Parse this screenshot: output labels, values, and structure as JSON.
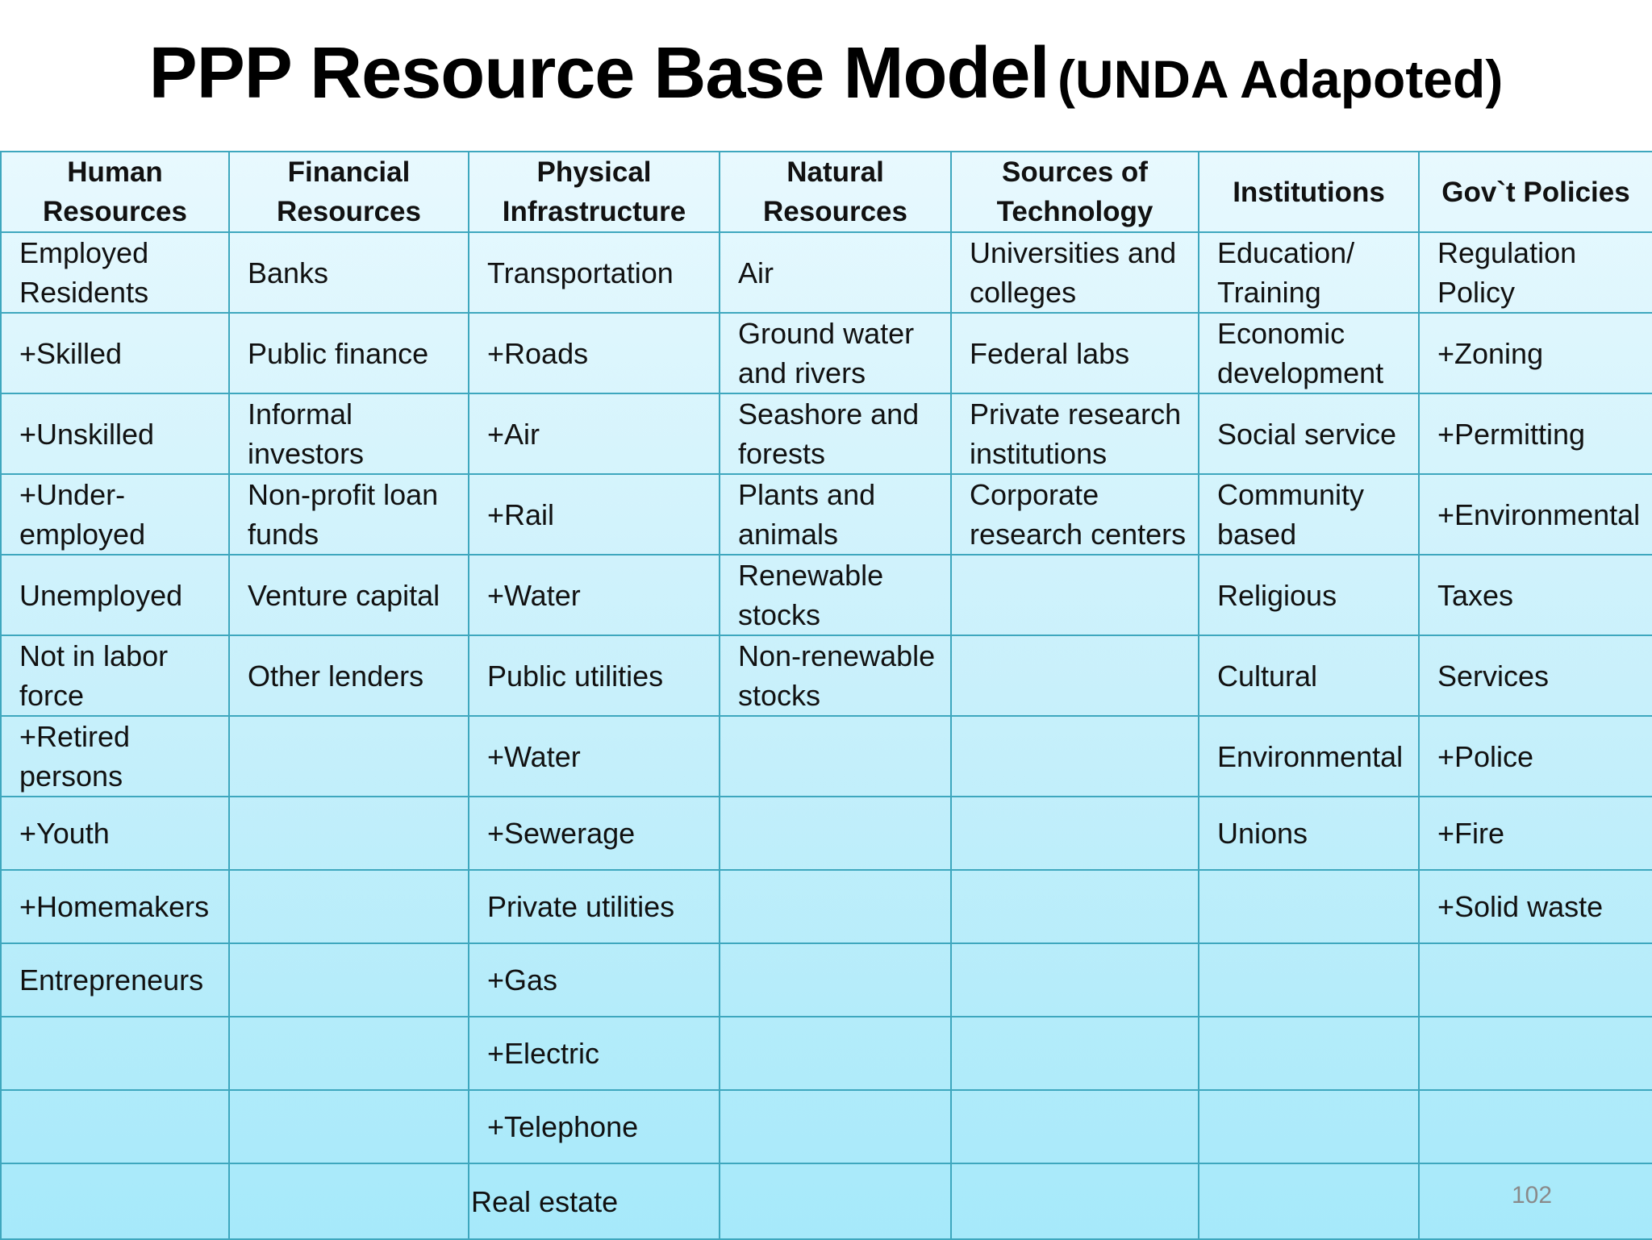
{
  "title": {
    "main": "PPP Resource Base Model",
    "sub": "(UNDA Adapoted)"
  },
  "table": {
    "headers": [
      "Human Resources",
      "Financial Resources",
      "Physical Infrastructure",
      "Natural Resources",
      "Sources of Technology",
      "Institutions",
      "Gov`t Policies"
    ],
    "rows": [
      [
        "Employed Residents",
        "Banks",
        "Transportation",
        "Air",
        "Universities and colleges",
        "Education/ Training",
        "Regulation Policy"
      ],
      [
        "+Skilled",
        "Public finance",
        "+Roads",
        "Ground water and rivers",
        "Federal labs",
        "Economic development",
        "+Zoning"
      ],
      [
        "+Unskilled",
        "Informal investors",
        "+Air",
        "Seashore and forests",
        "Private research institutions",
        "Social service",
        "+Permitting"
      ],
      [
        "+Under-employed",
        "Non-profit loan funds",
        "+Rail",
        "Plants and animals",
        "Corporate research centers",
        "Community based",
        "+Environmental"
      ],
      [
        "Unemployed",
        "Venture capital",
        "+Water",
        "Renewable stocks",
        "",
        "Religious",
        "Taxes"
      ],
      [
        "Not in labor force",
        "Other lenders",
        "Public utilities",
        "Non-renewable stocks",
        "",
        "Cultural",
        "Services"
      ],
      [
        "+Retired persons",
        "",
        "+Water",
        "",
        "",
        "Environmental",
        "+Police"
      ],
      [
        "+Youth",
        "",
        "+Sewerage",
        "",
        "",
        "Unions",
        "+Fire"
      ],
      [
        "+Homemakers",
        "",
        "Private utilities",
        "",
        "",
        "",
        "+Solid waste"
      ],
      [
        "Entrepreneurs",
        "",
        "+Gas",
        "",
        "",
        "",
        ""
      ],
      [
        "",
        "",
        "+Electric",
        "",
        "",
        "",
        ""
      ],
      [
        "",
        "",
        "+Telephone",
        "",
        "",
        "",
        ""
      ],
      [
        "",
        "",
        "Real estate",
        "",
        "",
        "",
        ""
      ]
    ]
  },
  "page_number": "102"
}
